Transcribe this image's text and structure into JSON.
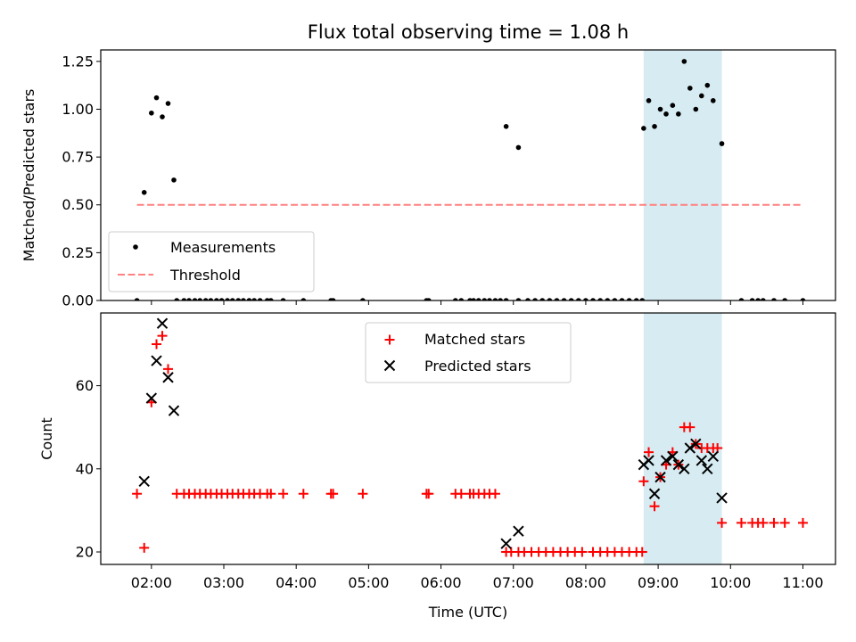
{
  "chart_data": [
    {
      "type": "scatter",
      "title": "Flux total observing time = 1.08 h",
      "xlabel": "",
      "ylabel": "Matched/Predicted stars",
      "xlim": [
        1.3,
        11.45
      ],
      "ylim": [
        0,
        1.31
      ],
      "yticks": [
        "0.00",
        "0.25",
        "0.50",
        "0.75",
        "1.00",
        "1.25"
      ],
      "ytick_values": [
        0,
        0.25,
        0.5,
        0.75,
        1.0,
        1.25
      ],
      "legend": {
        "placement": "lower-left",
        "entries": [
          {
            "label": "Measurements",
            "marker": "dot",
            "color": "#000000"
          },
          {
            "label": "Threshold",
            "marker": "dashed-line",
            "color": "#ff8080"
          }
        ]
      },
      "highlight_band": {
        "x": [
          8.8,
          9.88
        ],
        "color": "#add8e6"
      },
      "series": [
        {
          "name": "Measurements",
          "color": "#000000",
          "x": [
            1.9,
            2.0,
            2.07,
            2.15,
            2.23,
            2.31,
            6.9,
            7.07,
            8.8,
            8.87,
            8.95,
            9.03,
            9.11,
            9.2,
            9.28,
            9.36,
            9.44,
            9.52,
            9.6,
            9.68,
            9.76,
            9.88
          ],
          "y": [
            0.565,
            0.98,
            1.06,
            0.96,
            1.03,
            0.63,
            0.91,
            0.8,
            0.9,
            1.045,
            0.91,
            1.0,
            0.975,
            1.02,
            0.975,
            1.25,
            1.11,
            1.0,
            1.07,
            1.125,
            1.045,
            0.82
          ]
        },
        {
          "name": "Measurements",
          "color": "#000000",
          "x": [
            1.8,
            2.35,
            2.45,
            2.52,
            2.6,
            2.67,
            2.75,
            2.82,
            2.9,
            2.97,
            3.05,
            3.12,
            3.2,
            3.27,
            3.35,
            3.42,
            3.5,
            3.6,
            3.65,
            3.82,
            4.1,
            4.48,
            4.51,
            4.92,
            5.8,
            5.83,
            6.2,
            6.28,
            6.4,
            6.45,
            6.52,
            6.6,
            6.67,
            6.75,
            6.82,
            6.9,
            7.07,
            7.2,
            7.3,
            7.4,
            7.5,
            7.6,
            7.7,
            7.8,
            7.9,
            8.0,
            8.1,
            8.2,
            8.3,
            8.4,
            8.5,
            8.6,
            8.7,
            8.78,
            10.15,
            10.3,
            10.38,
            10.45,
            10.6,
            10.75,
            11.0
          ],
          "y": [
            0,
            0,
            0,
            0,
            0,
            0,
            0,
            0,
            0,
            0,
            0,
            0,
            0,
            0,
            0,
            0,
            0,
            0,
            0,
            0,
            0,
            0,
            0,
            0,
            0,
            0,
            0,
            0,
            0,
            0,
            0,
            0,
            0,
            0,
            0,
            0,
            0,
            0,
            0,
            0,
            0,
            0,
            0,
            0,
            0,
            0,
            0,
            0,
            0,
            0,
            0,
            0,
            0,
            0,
            0,
            0,
            0,
            0,
            0,
            0,
            0
          ]
        },
        {
          "name": "Threshold",
          "type": "line",
          "style": "dashed",
          "color": "#ff8080",
          "x": [
            1.8,
            11.0
          ],
          "y": [
            0.5,
            0.5
          ]
        }
      ]
    },
    {
      "type": "scatter",
      "title": "",
      "xlabel": "Time (UTC)",
      "ylabel": "Count",
      "xlim": [
        1.3,
        11.45
      ],
      "ylim": [
        17,
        77.5
      ],
      "xticks": [
        "02:00",
        "03:00",
        "04:00",
        "05:00",
        "06:00",
        "07:00",
        "08:00",
        "09:00",
        "10:00",
        "11:00"
      ],
      "xtick_values": [
        2,
        3,
        4,
        5,
        6,
        7,
        8,
        9,
        10,
        11
      ],
      "yticks": [
        "20",
        "40",
        "60"
      ],
      "ytick_values": [
        20,
        40,
        60
      ],
      "legend": {
        "placement": "upper-center",
        "entries": [
          {
            "label": "Matched stars",
            "marker": "plus",
            "color": "#ff0000"
          },
          {
            "label": "Predicted stars",
            "marker": "x",
            "color": "#000000"
          }
        ]
      },
      "highlight_band": {
        "x": [
          8.8,
          9.88
        ],
        "color": "#add8e6"
      },
      "series": [
        {
          "name": "Matched stars",
          "marker": "plus",
          "color": "#ff0000",
          "x": [
            1.8,
            1.9,
            2.0,
            2.07,
            2.15,
            2.23,
            2.35,
            2.45,
            2.52,
            2.6,
            2.67,
            2.75,
            2.82,
            2.9,
            2.97,
            3.05,
            3.12,
            3.2,
            3.27,
            3.35,
            3.42,
            3.5,
            3.6,
            3.65,
            3.82,
            4.1,
            4.48,
            4.51,
            4.92,
            5.8,
            5.83,
            6.2,
            6.28,
            6.4,
            6.45,
            6.52,
            6.6,
            6.67,
            6.75,
            6.9,
            6.97,
            7.07,
            7.15,
            7.25,
            7.35,
            7.45,
            7.55,
            7.65,
            7.75,
            7.85,
            7.95,
            8.1,
            8.2,
            8.3,
            8.4,
            8.5,
            8.6,
            8.7,
            8.78,
            8.8,
            8.87,
            8.95,
            9.03,
            9.11,
            9.2,
            9.28,
            9.36,
            9.44,
            9.52,
            9.6,
            9.68,
            9.76,
            9.82,
            9.88,
            10.15,
            10.3,
            10.38,
            10.45,
            10.6,
            10.75,
            11.0
          ],
          "y": [
            34,
            21,
            56,
            70,
            72,
            64,
            34,
            34,
            34,
            34,
            34,
            34,
            34,
            34,
            34,
            34,
            34,
            34,
            34,
            34,
            34,
            34,
            34,
            34,
            34,
            34,
            34,
            34,
            34,
            34,
            34,
            34,
            34,
            34,
            34,
            34,
            34,
            34,
            34,
            20,
            20,
            20,
            20,
            20,
            20,
            20,
            20,
            20,
            20,
            20,
            20,
            20,
            20,
            20,
            20,
            20,
            20,
            20,
            20,
            37,
            44,
            31,
            38,
            41,
            44,
            41,
            50,
            50,
            46,
            45,
            45,
            45,
            45,
            27,
            27,
            27,
            27,
            27,
            27,
            27,
            27
          ]
        },
        {
          "name": "Predicted stars",
          "marker": "x",
          "color": "#000000",
          "x": [
            1.9,
            2.0,
            2.07,
            2.15,
            2.23,
            2.31,
            6.9,
            7.07,
            8.8,
            8.87,
            8.95,
            9.03,
            9.11,
            9.2,
            9.28,
            9.36,
            9.44,
            9.52,
            9.6,
            9.68,
            9.76,
            9.88
          ],
          "y": [
            37,
            57,
            66,
            75,
            62,
            54,
            22,
            25,
            41,
            42,
            34,
            38,
            42,
            43,
            41,
            40,
            45,
            46,
            42,
            40,
            43,
            33
          ]
        }
      ]
    }
  ]
}
